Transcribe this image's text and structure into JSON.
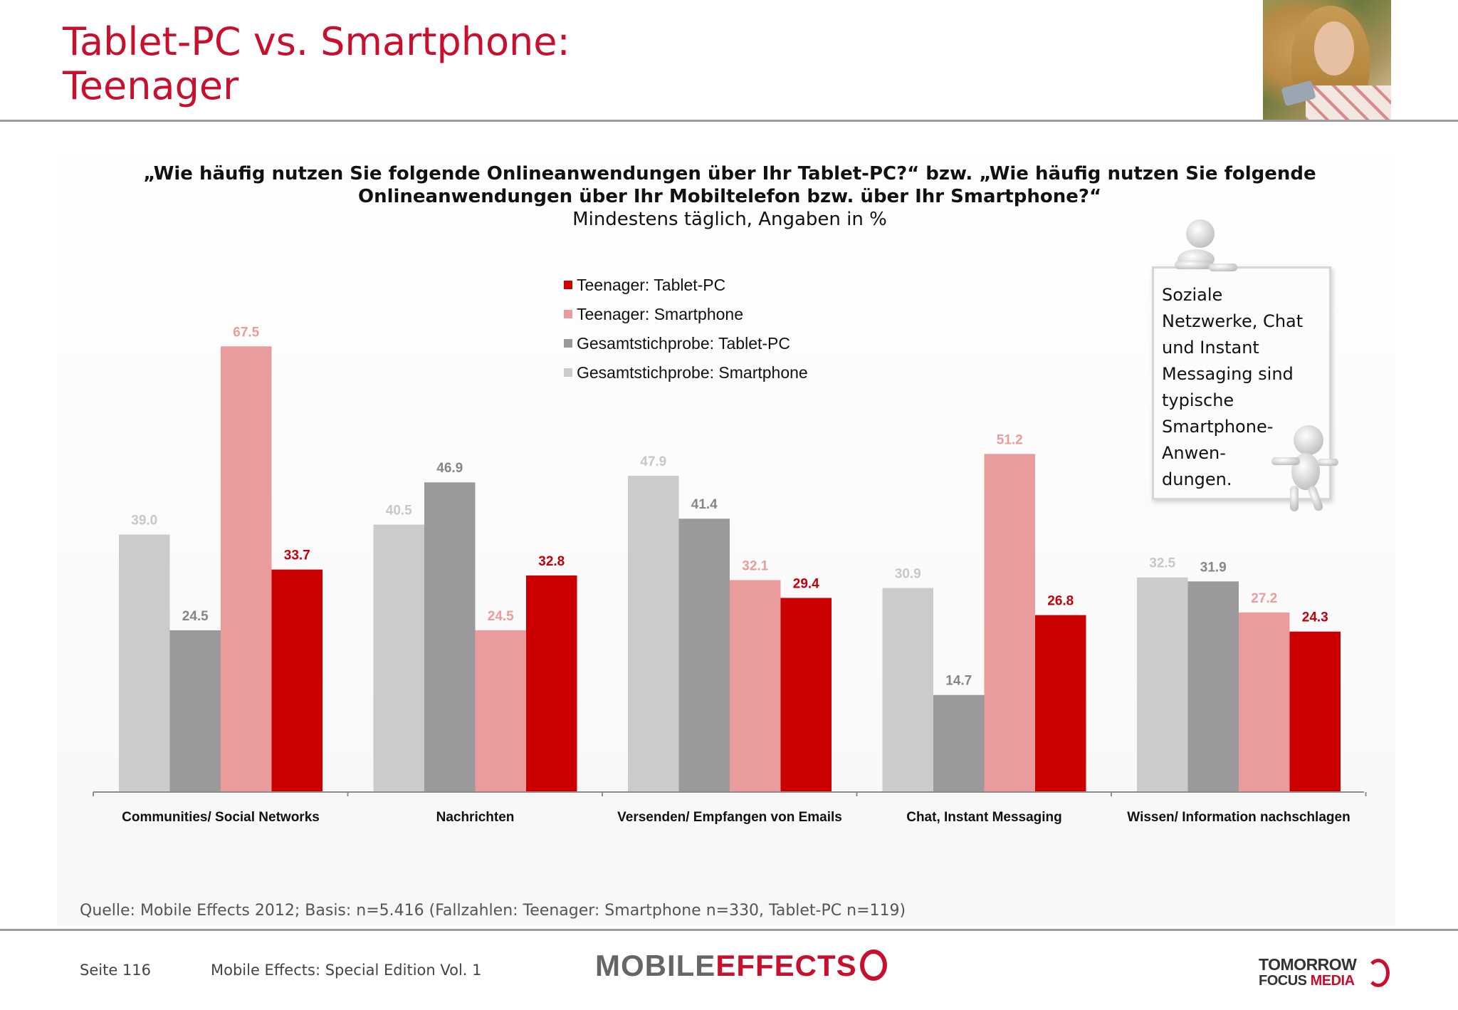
{
  "header": {
    "title_line1": "Tablet-PC vs. Smartphone:",
    "title_line2": "Teenager"
  },
  "question": {
    "line1": "„Wie häufig nutzen Sie folgende Onlineanwendungen über Ihr Tablet-PC?“ bzw. „Wie häufig nutzen Sie folgende",
    "line2": "Onlineanwendungen über Ihr Mobiltelefon bzw. über Ihr Smartphone?“",
    "subtitle": "Mindestens täglich, Angaben in %"
  },
  "chart_data": {
    "type": "bar",
    "title": "",
    "xlabel": "",
    "ylabel": "",
    "ylim": [
      0,
      70
    ],
    "grid": false,
    "legend_position": "top-center",
    "categories": [
      "Communities/ Social Networks",
      "Nachrichten",
      "Versenden/ Empfangen von Emails",
      "Chat, Instant Messaging",
      "Wissen/ Information nachschlagen"
    ],
    "series": [
      {
        "name": "Gesamtstichprobe: Smartphone",
        "color": "#cbcacd",
        "label_color": "#c7c7c9",
        "values": [
          39.0,
          40.5,
          47.9,
          30.9,
          32.5
        ]
      },
      {
        "name": "Gesamtstichprobe: Tablet-PC",
        "color": "#9b999c",
        "label_color": "#868589",
        "values": [
          24.5,
          46.9,
          41.4,
          14.7,
          31.9
        ]
      },
      {
        "name": "Teenager: Smartphone",
        "color": "#ea9c9d",
        "label_color": "#ea9c9d",
        "values": [
          67.5,
          24.5,
          32.1,
          51.2,
          27.2
        ]
      },
      {
        "name": "Teenager: Tablet-PC",
        "color": "#cc0000",
        "label_color": "#c0000b",
        "values": [
          33.7,
          32.8,
          29.4,
          26.8,
          24.3
        ]
      }
    ],
    "legend_order": [
      3,
      2,
      1,
      0
    ]
  },
  "note": {
    "lines": [
      "Soziale",
      "Netzwerke, Chat",
      "und Instant",
      "Messaging sind",
      "typische",
      "Smartphone-",
      "Anwen-",
      "dungen."
    ]
  },
  "footer": {
    "source": "Quelle: Mobile Effects 2012; Basis: n=5.416 (Fallzahlen: Teenager: Smartphone n=330, Tablet-PC n=119)",
    "page": "Seite 116",
    "edition": "Mobile Effects: Special Edition Vol. 1",
    "brand_part1": "MOBILE",
    "brand_part2": "EFFECTS",
    "partner_line1": "TOMORROW",
    "partner_line2a": "FOCUS",
    "partner_line2b": "MEDIA"
  }
}
